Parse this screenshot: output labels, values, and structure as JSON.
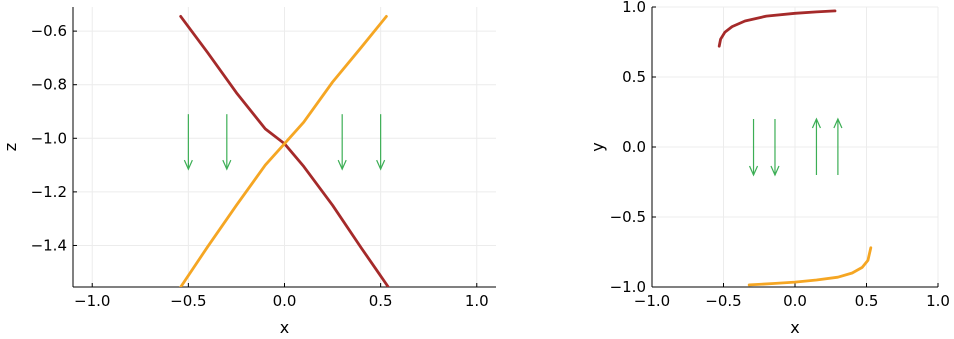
{
  "colors": {
    "red_curve": "#a52a2a",
    "orange_curve": "#f5a623",
    "arrow": "#3cae55",
    "grid": "#ececec",
    "axis": "#000000"
  },
  "chart_data": [
    {
      "type": "line",
      "title": "",
      "xlabel": "x",
      "ylabel": "z",
      "xlim": [
        -1.1,
        1.1
      ],
      "ylim": [
        -1.555,
        -0.51
      ],
      "xticks": [
        -1.0,
        -0.5,
        0.0,
        0.5,
        1.0
      ],
      "xtick_labels": [
        "−1.0",
        "−0.5",
        "0.0",
        "0.5",
        "1.0"
      ],
      "yticks": [
        -1.4,
        -1.2,
        -1.0,
        -0.8,
        -0.6
      ],
      "ytick_labels": [
        "−1.4",
        "−1.2",
        "−1.0",
        "−0.8",
        "−0.6"
      ],
      "grid": true,
      "legend": "none",
      "series": [
        {
          "color": "#a52a2a",
          "points": [
            [
              -0.54,
              -0.545
            ],
            [
              -0.4,
              -0.68
            ],
            [
              -0.25,
              -0.83
            ],
            [
              -0.1,
              -0.965
            ],
            [
              0.0,
              -1.02
            ],
            [
              0.1,
              -1.105
            ],
            [
              0.25,
              -1.25
            ],
            [
              0.4,
              -1.41
            ],
            [
              0.54,
              -1.555
            ]
          ]
        },
        {
          "color": "#f5a623",
          "points": [
            [
              -0.54,
              -1.555
            ],
            [
              -0.4,
              -1.405
            ],
            [
              -0.25,
              -1.25
            ],
            [
              -0.1,
              -1.1
            ],
            [
              0.0,
              -1.02
            ],
            [
              0.1,
              -0.94
            ],
            [
              0.25,
              -0.79
            ],
            [
              0.4,
              -0.66
            ],
            [
              0.53,
              -0.545
            ]
          ]
        }
      ],
      "arrows": [
        {
          "x": -0.5,
          "y_from": -0.91,
          "y_to": -1.115
        },
        {
          "x": -0.3,
          "y_from": -0.91,
          "y_to": -1.115
        },
        {
          "x": 0.3,
          "y_from": -0.91,
          "y_to": -1.115
        },
        {
          "x": 0.5,
          "y_from": -0.91,
          "y_to": -1.115
        }
      ]
    },
    {
      "type": "line",
      "title": "",
      "xlabel": "x",
      "ylabel": "y",
      "xlim": [
        -1.0,
        1.0
      ],
      "ylim": [
        -1.0,
        1.0
      ],
      "xticks": [
        -1.0,
        -0.5,
        0.0,
        0.5,
        1.0
      ],
      "xtick_labels": [
        "−1.0",
        "−0.5",
        "0.0",
        "0.5",
        "1.0"
      ],
      "yticks": [
        -1.0,
        -0.5,
        0.0,
        0.5,
        1.0
      ],
      "ytick_labels": [
        "−1.0",
        "−0.5",
        "0.0",
        "0.5",
        "1.0"
      ],
      "grid": true,
      "legend": "none",
      "series": [
        {
          "color": "#a52a2a",
          "points": [
            [
              -0.53,
              0.72
            ],
            [
              -0.52,
              0.77
            ],
            [
              -0.49,
              0.82
            ],
            [
              -0.44,
              0.86
            ],
            [
              -0.35,
              0.9
            ],
            [
              -0.2,
              0.935
            ],
            [
              0.0,
              0.955
            ],
            [
              0.15,
              0.965
            ],
            [
              0.28,
              0.972
            ]
          ]
        },
        {
          "color": "#f5a623",
          "points": [
            [
              -0.32,
              -0.985
            ],
            [
              -0.15,
              -0.975
            ],
            [
              0.0,
              -0.965
            ],
            [
              0.15,
              -0.95
            ],
            [
              0.3,
              -0.93
            ],
            [
              0.4,
              -0.9
            ],
            [
              0.47,
              -0.86
            ],
            [
              0.51,
              -0.81
            ],
            [
              0.53,
              -0.72
            ]
          ]
        }
      ],
      "arrows": [
        {
          "x": -0.29,
          "y_from": 0.2,
          "y_to": -0.2
        },
        {
          "x": -0.14,
          "y_from": 0.2,
          "y_to": -0.2
        },
        {
          "x": 0.15,
          "y_from": -0.2,
          "y_to": 0.2
        },
        {
          "x": 0.3,
          "y_from": -0.2,
          "y_to": 0.2
        }
      ]
    }
  ]
}
